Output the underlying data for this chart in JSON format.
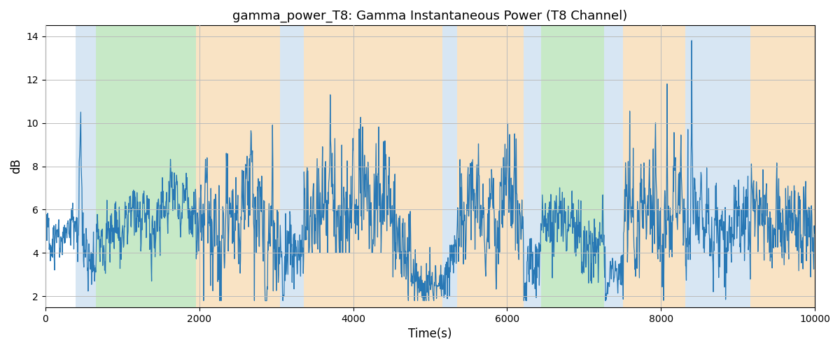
{
  "title": "gamma_power_T8: Gamma Instantaneous Power (T8 Channel)",
  "xlabel": "Time(s)",
  "ylabel": "dB",
  "xlim": [
    0,
    10000
  ],
  "ylim": [
    1.5,
    14.5
  ],
  "yticks": [
    2,
    4,
    6,
    8,
    10,
    12,
    14
  ],
  "xticks": [
    0,
    2000,
    4000,
    6000,
    8000,
    10000
  ],
  "line_color": "#2878b5",
  "line_width": 0.9,
  "background_color": "#ffffff",
  "title_fontsize": 13,
  "label_fontsize": 12,
  "colored_bands": [
    {
      "xmin": 390,
      "xmax": 660,
      "color": "#b0cfe8",
      "alpha": 0.5
    },
    {
      "xmin": 660,
      "xmax": 1960,
      "color": "#90d490",
      "alpha": 0.5
    },
    {
      "xmin": 1960,
      "xmax": 3050,
      "color": "#f5c98a",
      "alpha": 0.5
    },
    {
      "xmin": 3050,
      "xmax": 3360,
      "color": "#b0cfe8",
      "alpha": 0.5
    },
    {
      "xmin": 3360,
      "xmax": 5160,
      "color": "#f5c98a",
      "alpha": 0.5
    },
    {
      "xmin": 5160,
      "xmax": 5350,
      "color": "#b0cfe8",
      "alpha": 0.5
    },
    {
      "xmin": 5350,
      "xmax": 6210,
      "color": "#f5c98a",
      "alpha": 0.5
    },
    {
      "xmin": 6210,
      "xmax": 6440,
      "color": "#b0cfe8",
      "alpha": 0.5
    },
    {
      "xmin": 6440,
      "xmax": 7260,
      "color": "#90d490",
      "alpha": 0.5
    },
    {
      "xmin": 7260,
      "xmax": 7510,
      "color": "#b0cfe8",
      "alpha": 0.5
    },
    {
      "xmin": 7510,
      "xmax": 8320,
      "color": "#f5c98a",
      "alpha": 0.5
    },
    {
      "xmin": 8320,
      "xmax": 9160,
      "color": "#b0cfe8",
      "alpha": 0.5
    },
    {
      "xmin": 9160,
      "xmax": 10000,
      "color": "#f5c98a",
      "alpha": 0.5
    }
  ],
  "seed": 17,
  "n_points": 2000
}
